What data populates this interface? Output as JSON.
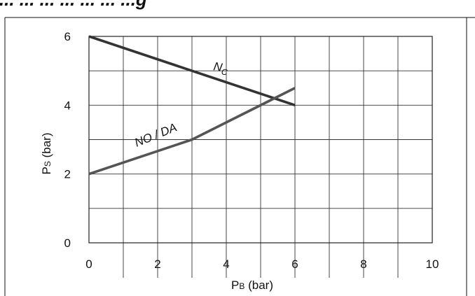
{
  "heading_fragment": "... ... ... ... ... ... ... ...g",
  "chart_data": {
    "type": "line",
    "xlim": [
      0,
      10
    ],
    "ylim": [
      0,
      6
    ],
    "x_ticks": [
      0,
      2,
      4,
      6,
      8,
      10
    ],
    "y_ticks": [
      0,
      2,
      4,
      6
    ],
    "x_tick_labels": [
      "0",
      "2",
      "4",
      "6",
      "8",
      "10"
    ],
    "y_tick_labels": [
      "0",
      "2",
      "4",
      "6"
    ],
    "grid": true,
    "xlabel": {
      "main": "P",
      "sub": "B",
      "unit": " (bar)"
    },
    "ylabel": {
      "main": "P",
      "sub": "S",
      "unit": " (bar)"
    },
    "series": [
      {
        "name_parts": {
          "main": "N",
          "sub": "C"
        },
        "color": "#333333",
        "points": [
          [
            0,
            6
          ],
          [
            6,
            4
          ]
        ]
      },
      {
        "name_parts": {
          "main": "NO / DA",
          "sub": ""
        },
        "color": "#555555",
        "points": [
          [
            0,
            2
          ],
          [
            3,
            3
          ],
          [
            6,
            4.5
          ]
        ]
      }
    ]
  }
}
